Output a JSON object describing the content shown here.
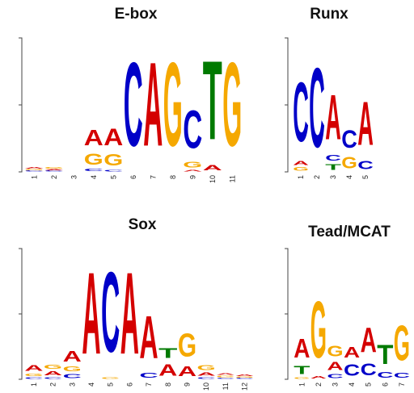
{
  "colors": {
    "A": "#d40000",
    "C": "#0000c8",
    "G": "#f5a800",
    "T": "#007a00"
  },
  "panels": [
    {
      "title": "E-box",
      "positions": [
        "1",
        "2",
        "3",
        "4",
        "5",
        "6",
        "7",
        "8",
        "9",
        "10",
        "11"
      ],
      "columns": [
        [
          [
            "C",
            0.01
          ],
          [
            "G",
            0.01
          ],
          [
            "A",
            0.02
          ]
        ],
        [
          [
            "C",
            0.01
          ],
          [
            "A",
            0.01
          ],
          [
            "G",
            0.02
          ]
        ],
        [],
        [
          [
            "C",
            0.03
          ],
          [
            "G",
            0.13
          ],
          [
            "A",
            0.19
          ]
        ],
        [
          [
            "C",
            0.02
          ],
          [
            "G",
            0.14
          ],
          [
            "A",
            0.2
          ]
        ],
        [
          [
            "C",
            1.0
          ]
        ],
        [
          [
            "A",
            1.0
          ]
        ],
        [
          [
            "G",
            1.0
          ]
        ],
        [
          [
            "A",
            0.02
          ],
          [
            "G",
            0.07
          ],
          [
            "C",
            0.45
          ]
        ],
        [
          [
            "A",
            0.06
          ],
          [
            "T",
            0.94
          ]
        ],
        [
          [
            "G",
            1.0
          ]
        ]
      ]
    },
    {
      "title": "Runx",
      "positions": [
        "1",
        "2",
        "3",
        "4",
        "5"
      ],
      "columns": [
        [
          [
            "G",
            0.04
          ],
          [
            "A",
            0.05
          ],
          [
            "C",
            0.71
          ]
        ],
        [
          [
            "C",
            0.95
          ]
        ],
        [
          [
            "T",
            0.07
          ],
          [
            "C",
            0.07
          ],
          [
            "A",
            0.53
          ]
        ],
        [
          [
            "G",
            0.14
          ],
          [
            "C",
            0.21
          ]
        ],
        [
          [
            "C",
            0.1
          ],
          [
            "A",
            0.52
          ]
        ]
      ]
    },
    {
      "title": "Sox",
      "positions": [
        "1",
        "2",
        "3",
        "4",
        "5",
        "6",
        "7",
        "8",
        "9",
        "10",
        "11",
        "12"
      ],
      "columns": [
        [
          [
            "C",
            0.02
          ],
          [
            "G",
            0.03
          ],
          [
            "A",
            0.07
          ]
        ],
        [
          [
            "C",
            0.02
          ],
          [
            "A",
            0.05
          ],
          [
            "G",
            0.05
          ]
        ],
        [
          [
            "C",
            0.05
          ],
          [
            "G",
            0.06
          ],
          [
            "A",
            0.13
          ]
        ],
        [
          [
            "A",
            1.0
          ]
        ],
        [
          [
            "G",
            0.02
          ],
          [
            "C",
            0.98
          ]
        ],
        [
          [
            "A",
            1.0
          ]
        ],
        [
          [
            "C",
            0.06
          ],
          [
            "A",
            0.52
          ]
        ],
        [
          [
            "A",
            0.14
          ],
          [
            "T",
            0.12
          ]
        ],
        [
          [
            "A",
            0.12
          ],
          [
            "G",
            0.28
          ]
        ],
        [
          [
            "C",
            0.02
          ],
          [
            "A",
            0.04
          ],
          [
            "G",
            0.06
          ]
        ],
        [
          [
            "C",
            0.01
          ],
          [
            "G",
            0.02
          ],
          [
            "A",
            0.02
          ]
        ],
        [
          [
            "C",
            0.01
          ],
          [
            "G",
            0.01
          ],
          [
            "A",
            0.02
          ]
        ]
      ]
    },
    {
      "title": "Tead/MCAT",
      "positions": [
        "1",
        "2",
        "3",
        "4",
        "5",
        "6",
        "7"
      ],
      "columns": [
        [
          [
            "G",
            0.02
          ],
          [
            "T",
            0.1
          ],
          [
            "A",
            0.23
          ]
        ],
        [
          [
            "A",
            0.03
          ],
          [
            "G",
            0.69
          ]
        ],
        [
          [
            "C",
            0.05
          ],
          [
            "A",
            0.1
          ],
          [
            "G",
            0.13
          ]
        ],
        [
          [
            "C",
            0.14
          ],
          [
            "A",
            0.13
          ]
        ],
        [
          [
            "C",
            0.15
          ],
          [
            "A",
            0.3
          ]
        ],
        [
          [
            "C",
            0.07
          ],
          [
            "T",
            0.24
          ]
        ],
        [
          [
            "C",
            0.06
          ],
          [
            "G",
            0.43
          ]
        ]
      ]
    }
  ]
}
